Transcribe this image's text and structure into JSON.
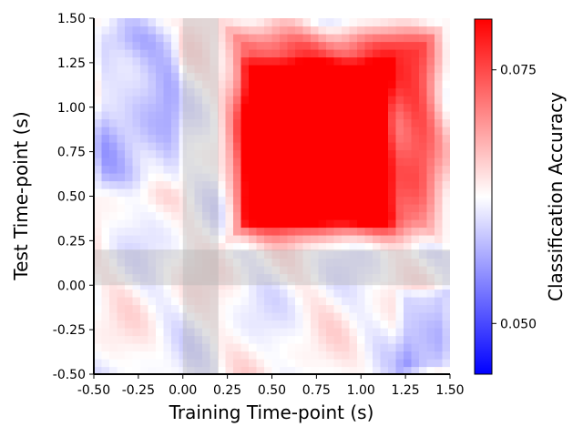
{
  "chart_data": {
    "type": "heatmap",
    "title": "",
    "xlabel": "Training Time-point (s)",
    "ylabel": "Test Time-point (s)",
    "xlim": [
      -0.5,
      1.5
    ],
    "ylim": [
      -0.5,
      1.5
    ],
    "x_ticks": [
      "-0.50",
      "-0.25",
      "0.00",
      "0.25",
      "0.50",
      "0.75",
      "1.00",
      "1.25",
      "1.50"
    ],
    "y_ticks": [
      "-0.50",
      "-0.25",
      "0.00",
      "0.25",
      "0.50",
      "0.75",
      "1.00",
      "1.25",
      "1.50"
    ],
    "colorbar": {
      "label": "Classification Accuracy",
      "range": [
        0.045,
        0.08
      ],
      "ticks": [
        "0.050",
        "0.075"
      ],
      "colormap": [
        "#0000ff",
        "#ffffff",
        "#ff0000"
      ]
    },
    "shaded_regions": [
      {
        "axis": "x",
        "from": 0.0,
        "to": 0.2,
        "color": "#b4b4b4"
      },
      {
        "axis": "y",
        "from": 0.0,
        "to": 0.2,
        "color": "#b4b4b4"
      }
    ],
    "features": [
      {
        "description": "above-chance plateau",
        "x": [
          0.2,
          1.5
        ],
        "y": [
          0.2,
          1.5
        ],
        "level": 0.076
      },
      {
        "description": "peak diagonal",
        "x": [
          0.3,
          1.2
        ],
        "y": [
          0.3,
          1.3
        ],
        "level": 0.08
      },
      {
        "description": "below-chance region",
        "x": [
          -0.5,
          0.0
        ],
        "y": [
          0.5,
          1.5
        ],
        "level": 0.058
      },
      {
        "description": "below-chance region",
        "x": [
          1.2,
          1.5
        ],
        "y": [
          -0.5,
          0.0
        ],
        "level": 0.057
      }
    ]
  }
}
